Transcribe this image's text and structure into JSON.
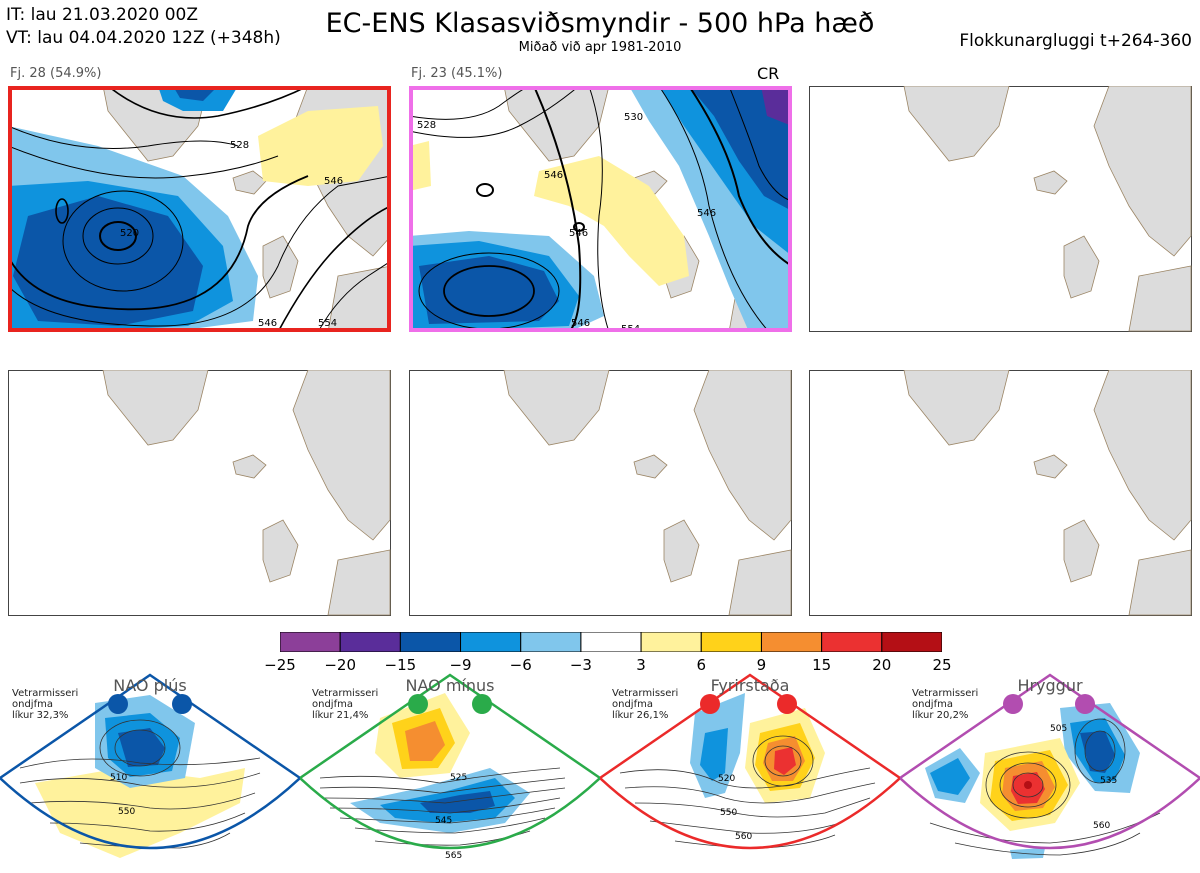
{
  "header": {
    "init_time": "IT: lau 21.03.2020 00Z",
    "valid_time": "VT: lau 04.04.2020 12Z  (+348h)",
    "title": "EC-ENS Klasasviðsmyndir - 500 hPa hæð",
    "subtitle": "Miðað við apr 1981-2010",
    "window": "Flokkunargluggi t+264-360"
  },
  "clusters": [
    {
      "label": "Fj. 28 (54.9%)",
      "border_color": "#e8241f",
      "flag": "",
      "contours": [
        "528",
        "546",
        "520",
        "546",
        "554"
      ]
    },
    {
      "label": "Fj. 23 (45.1%)",
      "border_color": "#ef6fe9",
      "flag": "CR",
      "contours": [
        "528",
        "530",
        "546",
        "546",
        "546",
        "546",
        "554"
      ]
    }
  ],
  "empty_panel_count": 4,
  "colorbar": {
    "colors": [
      "#8c3f99",
      "#5a2d9a",
      "#0b56a8",
      "#0f93dd",
      "#80c6ec",
      "#ffffff",
      "#fff29c",
      "#ffd21a",
      "#f58e30",
      "#eb3131",
      "#b40f15"
    ],
    "ticks": [
      "−25",
      "−20",
      "−15",
      "−9",
      "−6",
      "−3",
      "3",
      "6",
      "9",
      "15",
      "20",
      "25"
    ]
  },
  "regimes": [
    {
      "name": "NAO plús",
      "stat_lines": [
        "Vetrarmisseri",
        "ondjfma",
        "líkur 32,3%"
      ],
      "color": "#0b56a8",
      "contour_labels": [
        "510",
        "550"
      ]
    },
    {
      "name": "NAO mínus",
      "stat_lines": [
        "Vetrarmisseri",
        "ondjfma",
        "líkur 21,4%"
      ],
      "color": "#2aab4a",
      "contour_labels": [
        "525",
        "545",
        "565"
      ]
    },
    {
      "name": "Fyrirstaða",
      "stat_lines": [
        "Vetrarmisseri",
        "ondjfma",
        "líkur 26,1%"
      ],
      "color": "#eb2a2a",
      "contour_labels": [
        "520",
        "550",
        "560"
      ]
    },
    {
      "name": "Hryggur",
      "stat_lines": [
        "Vetrarmisseri",
        "ondjfma",
        "líkur 20,2%"
      ],
      "color": "#b24db0",
      "contour_labels": [
        "505",
        "535",
        "560"
      ]
    }
  ]
}
